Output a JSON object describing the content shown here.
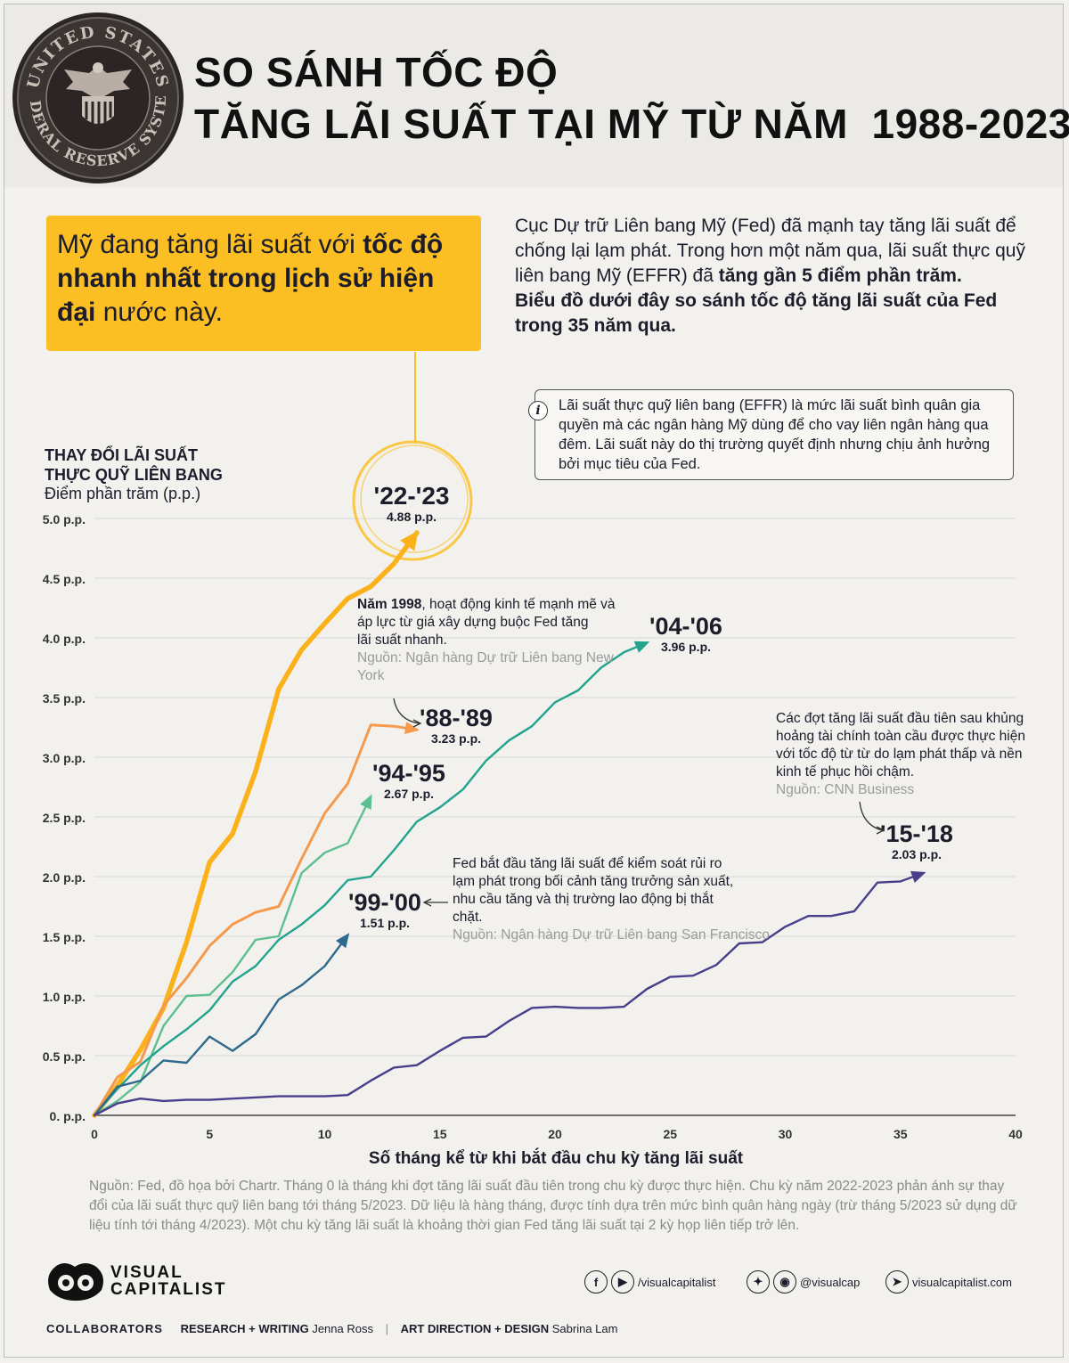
{
  "header": {
    "title_line1": "SO SÁNH TỐC ĐỘ",
    "title_line2": "TĂNG LÃI SUẤT TẠI MỸ TỪ NĂM  1988-2023",
    "seal_text": "UNITED STATES FEDERAL RESERVE SYSTEM"
  },
  "callout": {
    "part1": "Mỹ đang tăng lãi suất với ",
    "bold": "tốc độ nhanh nhất trong lịch sử hiện đại",
    "part2": " nước này."
  },
  "intro": {
    "text1": "Cục Dự trữ Liên bang Mỹ (Fed) đã mạnh tay tăng lãi suất để chống lại lạm phát. Trong hơn một năm qua, lãi suất thực quỹ liên bang Mỹ (EFFR) đã ",
    "bold1": "tăng gần 5 điểm phần trăm.",
    "bold2": "Biểu đồ dưới đây so sánh tốc độ tăng lãi suất của Fed trong 35 năm qua."
  },
  "info": {
    "icon": "i",
    "text": "Lãi suất thực quỹ liên bang (EFFR) là mức lãi suất bình quân gia quyền mà các ngân hàng Mỹ dùng để cho vay liên ngân hàng qua đêm. Lãi suất này do thị trường quyết định nhưng chịu ảnh hưởng bởi mục tiêu của Fed."
  },
  "chart_data": {
    "type": "line",
    "ylabel_line1": "THAY ĐỔI LÃI SUẤT",
    "ylabel_line2": "THỰC QUỸ LIÊN BANG",
    "ylabel_sub": "Điểm phần trăm (p.p.)",
    "xlabel": "Số tháng kể từ khi bắt đầu chu kỳ tăng lãi suất",
    "xlim": [
      0,
      40
    ],
    "ylim": [
      0,
      5
    ],
    "x_ticks": [
      0,
      5,
      10,
      15,
      20,
      25,
      30,
      35,
      40
    ],
    "y_ticks": [
      0,
      0.5,
      1,
      1.5,
      2,
      2.5,
      3,
      3.5,
      4,
      4.5,
      5
    ],
    "y_tick_labels": [
      "0. p.p.",
      "0.5 p.p.",
      "1.0 p.p.",
      "1.5 p.p.",
      "2.0 p.p.",
      "2.5 p.p.",
      "3.0 p.p.",
      "3.5 p.p.",
      "4.0 p.p.",
      "4.5 p.p.",
      "5.0 p.p."
    ],
    "grid": true,
    "series": [
      {
        "name": "'22-'23",
        "value_label": "4.88 p.p.",
        "color": "#fbb11a",
        "x": [
          0,
          1,
          2,
          3,
          4,
          5,
          6,
          7,
          8,
          9,
          10,
          11,
          12,
          13,
          14
        ],
        "y": [
          0,
          0.25,
          0.55,
          0.9,
          1.45,
          2.12,
          2.36,
          2.88,
          3.57,
          3.9,
          4.12,
          4.33,
          4.43,
          4.62,
          4.88
        ]
      },
      {
        "name": "'88-'89",
        "value_label": "3.23 p.p.",
        "color": "#f59a4c",
        "x": [
          0,
          1,
          2,
          3,
          4,
          5,
          6,
          7,
          8,
          9,
          10,
          11,
          12,
          13,
          14
        ],
        "y": [
          0,
          0.32,
          0.45,
          0.92,
          1.15,
          1.42,
          1.6,
          1.7,
          1.75,
          2.15,
          2.53,
          2.78,
          3.27,
          3.26,
          3.23
        ]
      },
      {
        "name": "'94-'95",
        "value_label": "2.67 p.p.",
        "color": "#5cbf8f",
        "x": [
          0,
          1,
          2,
          3,
          4,
          5,
          6,
          7,
          8,
          9,
          10,
          11,
          12
        ],
        "y": [
          0,
          0.12,
          0.28,
          0.75,
          1.0,
          1.01,
          1.2,
          1.47,
          1.5,
          2.03,
          2.2,
          2.28,
          2.67
        ]
      },
      {
        "name": "'04-'06",
        "value_label": "3.96 p.p.",
        "color": "#21a38c",
        "x": [
          0,
          1,
          2,
          3,
          4,
          5,
          6,
          7,
          8,
          9,
          10,
          11,
          12,
          13,
          14,
          15,
          16,
          17,
          18,
          19,
          20,
          21,
          22,
          23,
          24
        ],
        "y": [
          0,
          0.22,
          0.42,
          0.58,
          0.72,
          0.88,
          1.12,
          1.25,
          1.47,
          1.6,
          1.76,
          1.97,
          2.0,
          2.22,
          2.46,
          2.58,
          2.73,
          2.97,
          3.14,
          3.26,
          3.46,
          3.56,
          3.75,
          3.88,
          3.96
        ]
      },
      {
        "name": "'99-'00",
        "value_label": "1.51 p.p.",
        "color": "#2e6a8c",
        "x": [
          0,
          1,
          2,
          3,
          4,
          5,
          6,
          7,
          8,
          9,
          10,
          11
        ],
        "y": [
          0,
          0.24,
          0.29,
          0.46,
          0.44,
          0.66,
          0.54,
          0.68,
          0.97,
          1.09,
          1.25,
          1.51
        ]
      },
      {
        "name": "'15-'18",
        "value_label": "2.03 p.p.",
        "color": "#4a3e8c",
        "x": [
          0,
          1,
          2,
          3,
          4,
          5,
          6,
          7,
          8,
          9,
          10,
          11,
          12,
          13,
          14,
          15,
          16,
          17,
          18,
          19,
          20,
          21,
          22,
          23,
          24,
          25,
          26,
          27,
          28,
          29,
          30,
          31,
          32,
          33,
          34,
          35,
          36
        ],
        "y": [
          0,
          0.1,
          0.14,
          0.12,
          0.13,
          0.13,
          0.14,
          0.15,
          0.16,
          0.16,
          0.16,
          0.17,
          0.29,
          0.4,
          0.42,
          0.54,
          0.65,
          0.66,
          0.79,
          0.9,
          0.91,
          0.9,
          0.9,
          0.91,
          1.06,
          1.16,
          1.17,
          1.26,
          1.44,
          1.45,
          1.58,
          1.67,
          1.67,
          1.71,
          1.95,
          1.96,
          2.03
        ]
      }
    ],
    "annotations": [
      {
        "id": "a1998",
        "bold": "Năm 1998",
        "text": ", hoạt động kinh tế mạnh mẽ và áp lực từ giá xây dựng buộc Fed tăng lãi suất nhanh.",
        "source": "Nguồn: Ngân hàng Dự trữ Liên bang New York"
      },
      {
        "id": "a2015",
        "text": "Các đợt tăng lãi suất đầu tiên sau khủng hoảng tài chính toàn cầu được thực hiện với tốc độ từ từ do lạm phát thấp và nền kinh tế phục hồi chậm.",
        "source": "Nguồn: CNN Business"
      },
      {
        "id": "a1999",
        "text": "Fed bắt đầu tăng lãi suất để kiểm soát rủi ro lạm phát trong bối cảnh tăng trưởng sản xuất, nhu cầu tăng và thị trường lao động bị thắt chặt.",
        "source": "Nguồn: Ngân hàng Dự trữ Liên bang San Francisco"
      }
    ]
  },
  "source_note": "Nguồn: Fed, đồ họa bởi Chartr. Tháng 0 là tháng khi đợt tăng lãi suất đầu tiên trong chu kỳ được thực hiện. Chu kỳ năm 2022-2023 phản ánh sự thay đổi của lãi suất thực quỹ liên bang tới tháng 5/2023. Dữ liệu là hàng tháng, được tính dựa trên mức bình quân hàng ngày (trừ tháng 5/2023 sử dụng dữ liệu tính tới tháng 4/2023). Một chu kỳ tăng lãi suất là khoảng thời gian Fed tăng lãi suất tại 2 kỳ họp liên tiếp trở lên.",
  "footer": {
    "brand_line1": "VISUAL",
    "brand_line2": "CAPITALIST",
    "social_handle1": "/visualcapitalist",
    "social_handle2": "@visualcap",
    "website": "visualcapitalist.com",
    "icons": [
      "facebook-icon",
      "youtube-icon",
      "twitter-icon",
      "instagram-icon",
      "cursor-icon"
    ],
    "collaborators_label": "COLLABORATORS",
    "role1": "RESEARCH + WRITING",
    "name1": "Jenna Ross",
    "separator": "|",
    "role2": "ART DIRECTION + DESIGN",
    "name2": "Sabrina Lam"
  }
}
